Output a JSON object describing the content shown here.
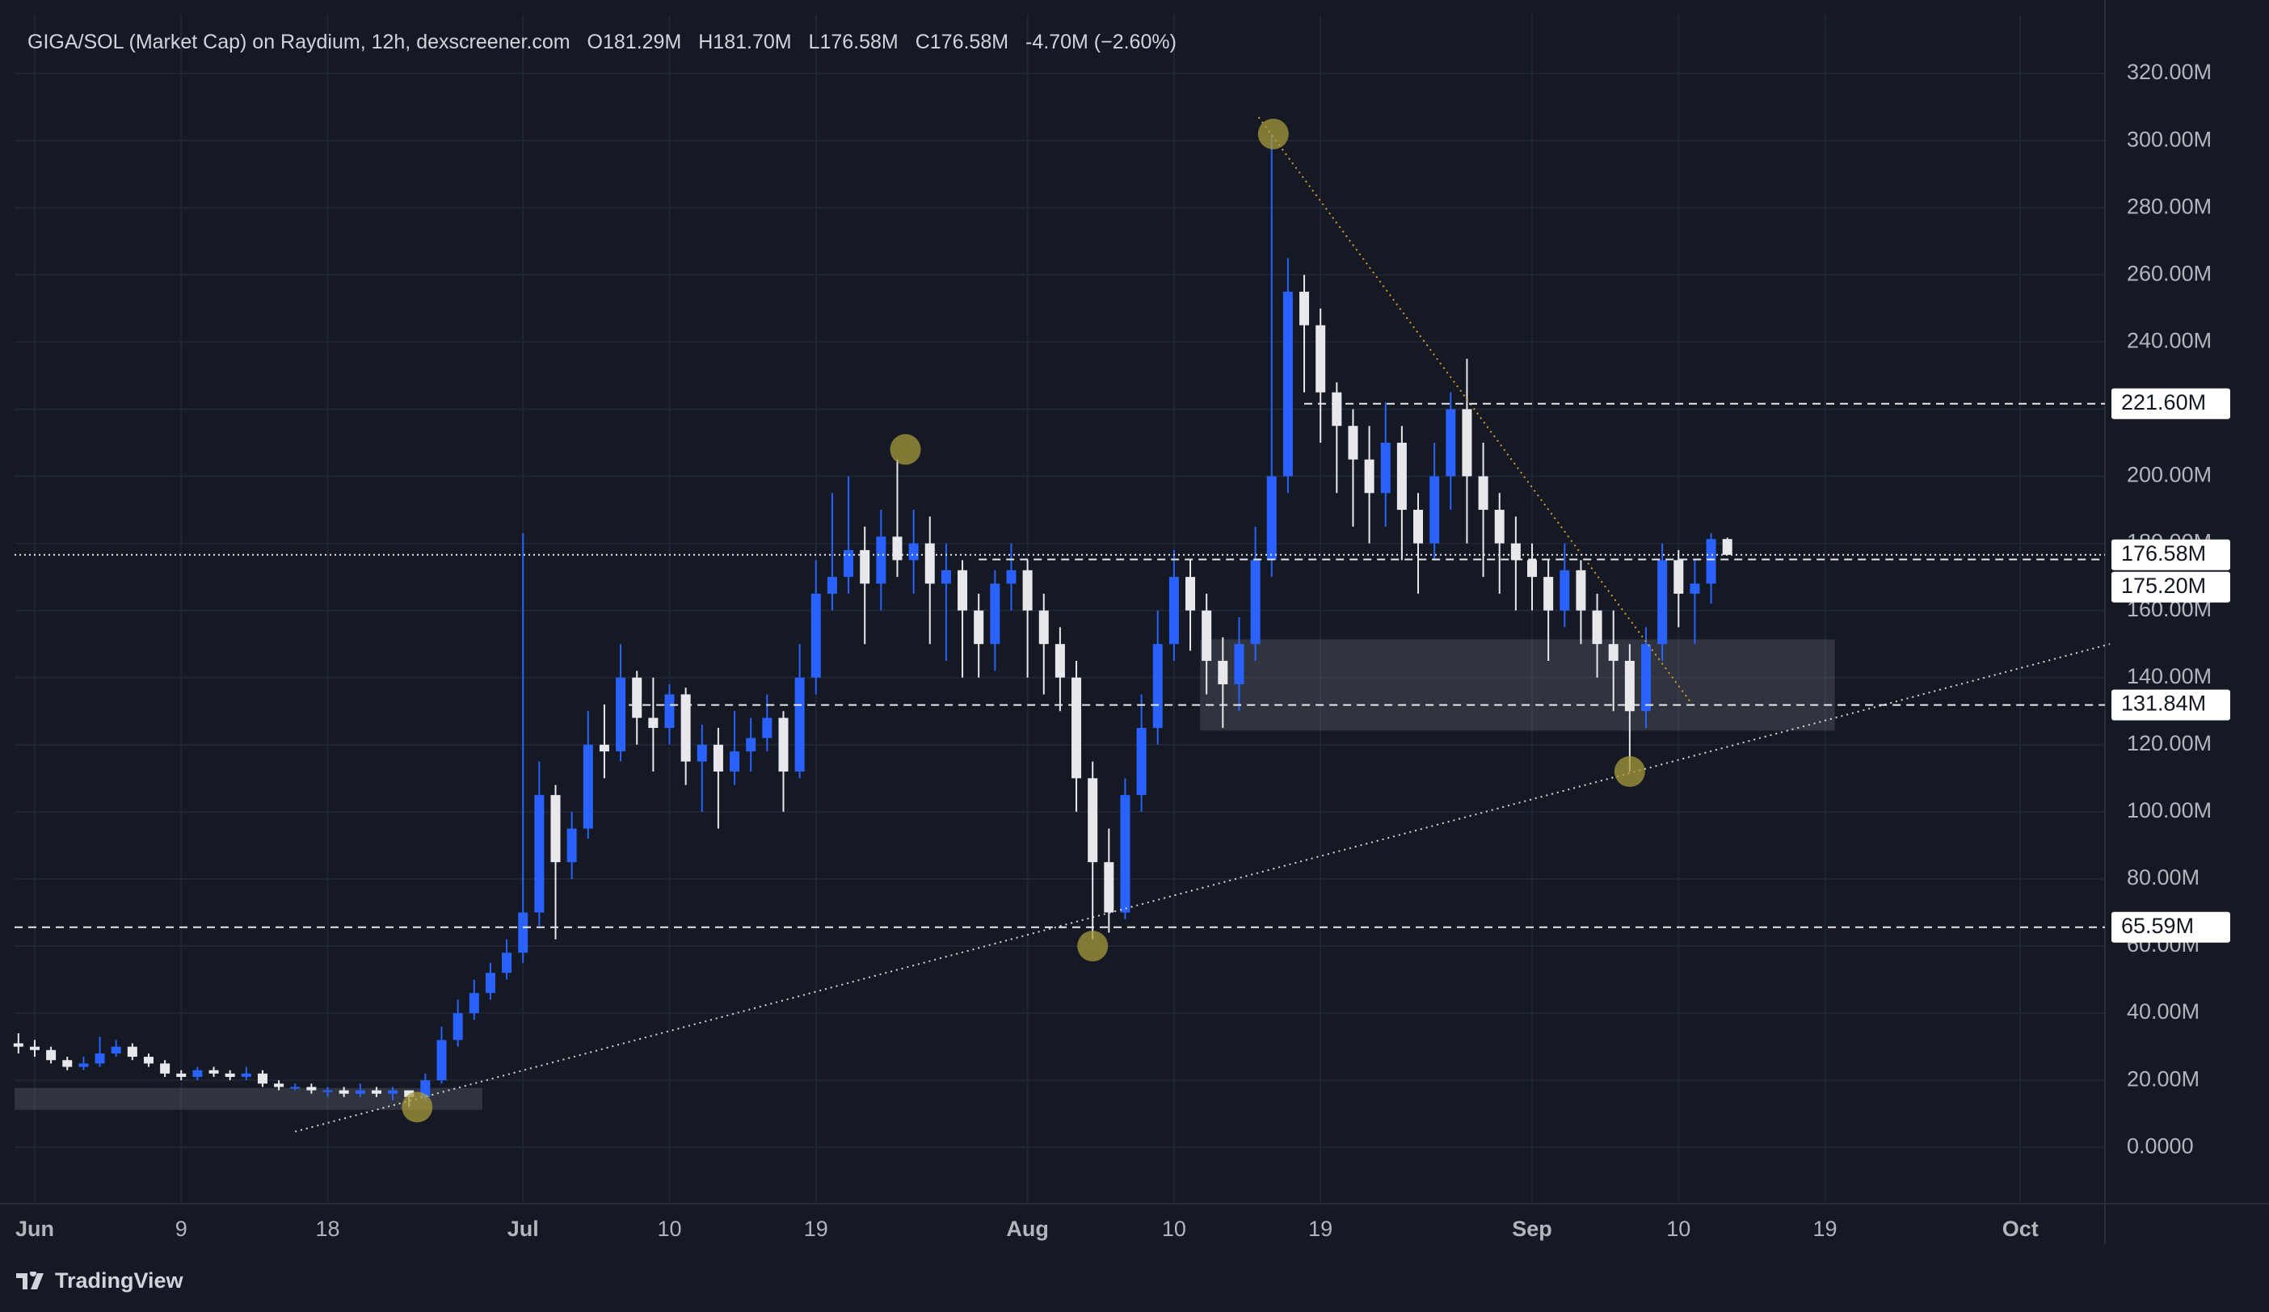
{
  "header": {
    "title": "GIGA/SOL (Market Cap) on Raydium, 12h, dexscreener.com",
    "open": "O181.29M",
    "high": "H181.70M",
    "low": "L176.58M",
    "close": "C176.58M",
    "change": "-4.70M (−2.60%)"
  },
  "footer": {
    "brand": "TradingView"
  },
  "chart_data": {
    "type": "candlestick",
    "up_color": "#2962ff",
    "down_color": "#e8e8ec",
    "grid": true,
    "x": [
      -1,
      0,
      1,
      2,
      3,
      4,
      5,
      6,
      7,
      8,
      9,
      10,
      11,
      12,
      13,
      14,
      15,
      16,
      17,
      18,
      19,
      20,
      21,
      22,
      23,
      24,
      25,
      26,
      27,
      28,
      29,
      30,
      31,
      32,
      33,
      34,
      35,
      36,
      37,
      38,
      39,
      40,
      41,
      42,
      43,
      44,
      45,
      46,
      47,
      48,
      49,
      50,
      51,
      52,
      53,
      54,
      55,
      56,
      57,
      58,
      59,
      60,
      61,
      62,
      63,
      64,
      65,
      66,
      67,
      68,
      69,
      70,
      71,
      72,
      73,
      74,
      75,
      76,
      77,
      78,
      79,
      80,
      81,
      82,
      83,
      84,
      85,
      86,
      87,
      88,
      89,
      90,
      91,
      92,
      93,
      94,
      95,
      96,
      97,
      98,
      99,
      100,
      101,
      102,
      103,
      104
    ],
    "open": [
      31,
      30,
      29,
      26,
      24,
      25,
      28,
      30,
      27,
      25,
      22,
      21,
      23,
      22,
      21,
      22,
      19,
      18,
      18,
      17,
      17,
      16,
      17,
      16,
      17,
      15,
      20,
      32,
      40,
      46,
      52,
      58,
      70,
      105,
      85,
      95,
      120,
      118,
      140,
      128,
      125,
      135,
      115,
      120,
      112,
      118,
      122,
      128,
      112,
      140,
      165,
      170,
      178,
      168,
      182,
      175,
      180,
      168,
      172,
      160,
      150,
      168,
      172,
      160,
      150,
      140,
      110,
      85,
      70,
      105,
      125,
      150,
      170,
      160,
      145,
      138,
      150,
      175,
      200,
      255,
      245,
      225,
      215,
      205,
      195,
      210,
      190,
      180,
      200,
      220,
      200,
      190,
      180,
      175,
      170,
      160,
      172,
      160,
      150,
      145,
      130,
      150,
      175,
      165,
      168,
      181.29
    ],
    "high": [
      34,
      32,
      30,
      27,
      27,
      33,
      32,
      31,
      28,
      26,
      23,
      24,
      24,
      23,
      24,
      23,
      20,
      19,
      19,
      18,
      18,
      19,
      18,
      18,
      17,
      22,
      36,
      44,
      50,
      55,
      62,
      183,
      115,
      108,
      100,
      130,
      132,
      150,
      142,
      140,
      138,
      137,
      126,
      125,
      130,
      128,
      135,
      130,
      150,
      175,
      195,
      200,
      185,
      190,
      205,
      190,
      188,
      180,
      175,
      165,
      172,
      180,
      175,
      165,
      155,
      145,
      115,
      95,
      110,
      135,
      160,
      178,
      175,
      165,
      152,
      158,
      185,
      302,
      265,
      260,
      250,
      228,
      220,
      215,
      222,
      215,
      195,
      210,
      225,
      235,
      210,
      195,
      188,
      180,
      175,
      180,
      175,
      165,
      160,
      150,
      155,
      180,
      178,
      175,
      183,
      181.7
    ],
    "low": [
      28,
      27,
      25,
      23,
      23,
      24,
      27,
      26,
      24,
      21,
      20,
      20,
      21,
      20,
      20,
      18,
      17,
      17,
      16,
      15,
      15,
      15,
      15,
      14,
      12,
      14,
      19,
      30,
      38,
      44,
      50,
      55,
      66,
      62,
      80,
      92,
      110,
      115,
      120,
      112,
      120,
      108,
      100,
      95,
      108,
      112,
      118,
      100,
      110,
      135,
      160,
      165,
      150,
      160,
      170,
      165,
      150,
      145,
      140,
      140,
      142,
      160,
      140,
      135,
      130,
      100,
      62,
      64,
      68,
      100,
      120,
      145,
      148,
      135,
      125,
      130,
      145,
      170,
      195,
      225,
      210,
      195,
      185,
      180,
      185,
      175,
      165,
      175,
      190,
      180,
      170,
      165,
      160,
      160,
      145,
      155,
      150,
      140,
      130,
      112,
      125,
      145,
      155,
      150,
      162,
      176.58
    ],
    "close": [
      30,
      29,
      26,
      24,
      25,
      28,
      30,
      27,
      25,
      22,
      21,
      23,
      22,
      21,
      22,
      19,
      18,
      18,
      17,
      17,
      16,
      17,
      16,
      17,
      15,
      20,
      32,
      40,
      46,
      52,
      58,
      70,
      105,
      85,
      95,
      120,
      118,
      140,
      128,
      125,
      135,
      115,
      120,
      112,
      118,
      122,
      128,
      112,
      140,
      165,
      170,
      178,
      168,
      182,
      175,
      180,
      168,
      172,
      160,
      150,
      168,
      172,
      160,
      150,
      140,
      110,
      85,
      70,
      105,
      125,
      150,
      170,
      160,
      145,
      138,
      150,
      175,
      200,
      255,
      245,
      225,
      215,
      205,
      195,
      210,
      190,
      180,
      200,
      220,
      200,
      190,
      180,
      175,
      170,
      160,
      172,
      160,
      150,
      145,
      130,
      150,
      175,
      165,
      168,
      181.29,
      176.58
    ],
    "xlim": [
      -1.24,
      127.2
    ],
    "xticks": [
      {
        "value": 0,
        "label": "Jun"
      },
      9,
      18,
      {
        "value": 30,
        "label": "Jul"
      },
      {
        "value": 39,
        "label": "10"
      },
      {
        "value": 48,
        "label": "19"
      },
      {
        "value": 61,
        "label": "Aug"
      },
      {
        "value": 70,
        "label": "10"
      },
      {
        "value": 79,
        "label": "19"
      },
      {
        "value": 92,
        "label": "Sep"
      },
      {
        "value": 101,
        "label": "10"
      },
      {
        "value": 110,
        "label": "19"
      },
      {
        "value": 122,
        "label": "Oct"
      }
    ],
    "ylim": [
      -16.8,
      337.6
    ],
    "yticks": [
      {
        "value": 0,
        "label": "0.0000"
      },
      {
        "value": 20,
        "label": "20.00M"
      },
      {
        "value": 40,
        "label": "40.00M"
      },
      {
        "value": 60,
        "label": "60.00M"
      },
      {
        "value": 80,
        "label": "80.00M"
      },
      {
        "value": 100,
        "label": "100.00M"
      },
      {
        "value": 120,
        "label": "120.00M"
      },
      {
        "value": 140,
        "label": "140.00M"
      },
      {
        "value": 160,
        "label": "160.00M"
      },
      {
        "value": 180,
        "label": "180.00M"
      },
      {
        "value": 200,
        "label": "200.00M"
      },
      {
        "value": 220,
        "label": "220.00M"
      },
      {
        "value": 240,
        "label": "240.00M"
      },
      {
        "value": 260,
        "label": "260.00M"
      },
      {
        "value": 280,
        "label": "280.00M"
      },
      {
        "value": 300,
        "label": "300.00M"
      },
      {
        "value": 320,
        "label": "320.00M"
      }
    ],
    "levels": [
      {
        "value": 221.6,
        "label": "221.60M",
        "from": 78
      },
      {
        "value": 176.58,
        "label": "176.58M",
        "from": -1.24,
        "style": "dotted"
      },
      {
        "value": 175.2,
        "label": "175.20M",
        "from": 58
      },
      {
        "value": 131.84,
        "label": "131.84M",
        "from": 36.5
      },
      {
        "value": 65.59,
        "label": "65.59M",
        "from": -1.24
      }
    ],
    "zones": [
      {
        "x": [
          71.6,
          110.6
        ],
        "y": [
          124.2,
          151.4
        ]
      },
      {
        "x": [
          -1.24,
          27.5
        ],
        "y": [
          11.2,
          17.7
        ]
      }
    ],
    "trendlines": [
      {
        "x": [
          16,
          127.5
        ],
        "y": [
          4.7,
          150
        ],
        "color": "#d8d8d8"
      },
      {
        "x": [
          75.2,
          102
        ],
        "y": [
          307,
          131
        ],
        "color": "#e09a2a"
      }
    ],
    "markers": {
      "x": [
        53.5,
        76.1,
        65,
        23.5,
        98
      ],
      "y": [
        208,
        302,
        60,
        12,
        112
      ],
      "color": "#a89a3c"
    }
  }
}
